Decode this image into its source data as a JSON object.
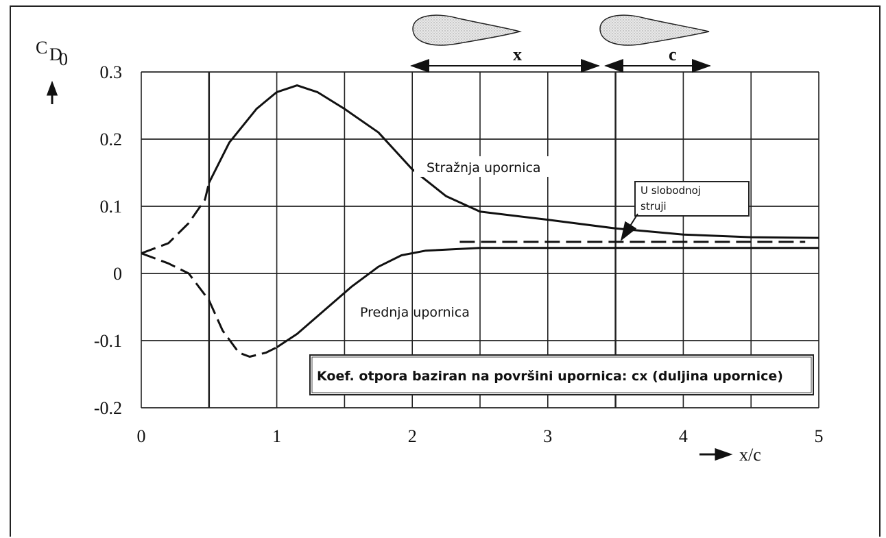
{
  "chart_data": {
    "type": "line",
    "ylabel": "C",
    "ylabel_sub": "D",
    "ylabel_subsub": "0",
    "xlabel": "x/c",
    "xlim": [
      0,
      5
    ],
    "ylim": [
      -0.2,
      0.3
    ],
    "x_ticks": [
      0,
      1,
      2,
      3,
      4,
      5
    ],
    "x_tick_labels": [
      "0",
      "1",
      "2",
      "3",
      "4",
      "5"
    ],
    "y_ticks": [
      0.3,
      0.2,
      0.1,
      0,
      -0.1,
      -0.2
    ],
    "y_tick_labels": [
      "0.3",
      "0.2",
      "0.1",
      "0",
      "-0.1",
      "-0.2"
    ],
    "grid": true,
    "series": [
      {
        "name": "Stražnja upornica",
        "dashed": [
          [
            0,
            0.03
          ],
          [
            0.2,
            0.045
          ],
          [
            0.35,
            0.075
          ],
          [
            0.47,
            0.11
          ],
          [
            0.5,
            0.135
          ]
        ],
        "solid": [
          [
            0.5,
            0.135
          ],
          [
            0.65,
            0.195
          ],
          [
            0.85,
            0.245
          ],
          [
            1.0,
            0.27
          ],
          [
            1.15,
            0.28
          ],
          [
            1.3,
            0.27
          ],
          [
            1.5,
            0.245
          ],
          [
            1.75,
            0.21
          ],
          [
            2.0,
            0.155
          ],
          [
            2.25,
            0.115
          ],
          [
            2.5,
            0.092
          ],
          [
            3.0,
            0.08
          ],
          [
            3.5,
            0.067
          ],
          [
            4.0,
            0.058
          ],
          [
            4.5,
            0.054
          ],
          [
            5.0,
            0.053
          ]
        ]
      },
      {
        "name": "Prednja upornica",
        "dashed": [
          [
            0,
            0.03
          ],
          [
            0.2,
            0.015
          ],
          [
            0.35,
            0.0
          ],
          [
            0.5,
            -0.04
          ],
          [
            0.6,
            -0.085
          ],
          [
            0.72,
            -0.118
          ],
          [
            0.8,
            -0.124
          ],
          [
            0.92,
            -0.118
          ],
          [
            1.0,
            -0.11
          ]
        ],
        "solid": [
          [
            1.0,
            -0.11
          ],
          [
            1.15,
            -0.09
          ],
          [
            1.35,
            -0.055
          ],
          [
            1.55,
            -0.02
          ],
          [
            1.75,
            0.01
          ],
          [
            1.92,
            0.027
          ],
          [
            2.1,
            0.034
          ],
          [
            2.5,
            0.038
          ],
          [
            3.0,
            0.038
          ],
          [
            4.0,
            0.038
          ],
          [
            5.0,
            0.038
          ]
        ]
      },
      {
        "name": "U slobodnoj struji",
        "style": "dashed",
        "points": [
          [
            2.35,
            0.047
          ],
          [
            4.9,
            0.047
          ]
        ]
      }
    ],
    "annotations": {
      "rear_label": "Stražnja upornica",
      "front_label": "Prednja upornica",
      "free_stream_label_line1": "U slobodnoj",
      "free_stream_label_line2": "struji",
      "coef_note": "Koef. otpora baziran na površini upornica: cx (duljina upornice)",
      "dim_x": "x",
      "dim_c": "c"
    }
  }
}
